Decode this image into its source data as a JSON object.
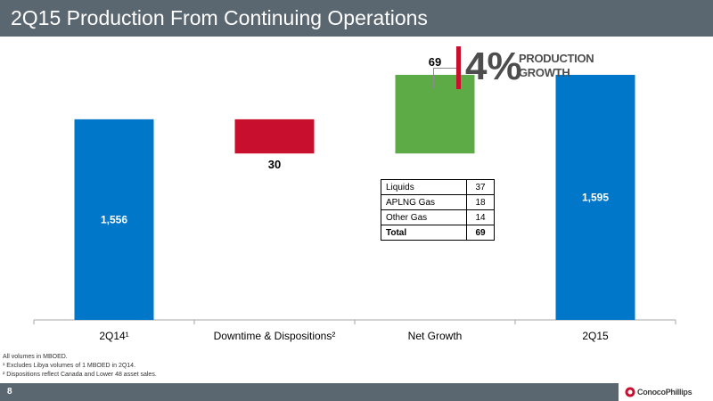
{
  "page": {
    "title": "2Q15 Production From Continuing Operations",
    "page_number": "8",
    "logo_text": "ConocoPhillips",
    "colors": {
      "header": "#5b6770",
      "increase": "#5cab47",
      "decrease": "#c8102e",
      "total": "#0077c8",
      "accent": "#c8102e"
    }
  },
  "callout": {
    "value": "4%",
    "label_line1": "PRODUCTION",
    "label_line2": "GROWTH"
  },
  "breakdown": {
    "rows": [
      {
        "label": "Liquids",
        "value": "37"
      },
      {
        "label": "APLNG Gas",
        "value": "18"
      },
      {
        "label": "Other Gas",
        "value": "14"
      }
    ],
    "total": {
      "label": "Total",
      "value": "69"
    }
  },
  "footnotes": [
    "All volumes in MBOED.",
    "¹ Excludes Libya volumes of 1 MBOED in 2Q14.",
    "² Dispositions reflect Canada and Lower 48 asset sales."
  ],
  "chart_data": {
    "type": "bar",
    "subtype": "waterfall",
    "categories": [
      "2Q14¹",
      "Downtime & Dispositions²",
      "Net Growth",
      "2Q15"
    ],
    "values": [
      1556,
      -30,
      69,
      1595
    ],
    "data_labels": [
      "1,556",
      "30",
      "69",
      "1,595"
    ],
    "bar_kind": [
      "total",
      "decrease",
      "increase",
      "total"
    ],
    "axis_baseline": 1380,
    "ylim": [
      1380,
      1620
    ],
    "grid": false,
    "title": "",
    "xlabel": "",
    "ylabel": ""
  }
}
